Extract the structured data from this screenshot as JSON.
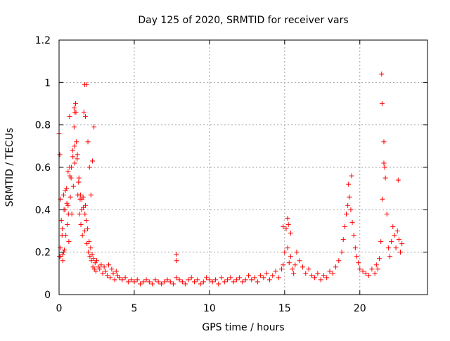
{
  "chart_data": {
    "type": "scatter",
    "title": "Day 125 of 2020, SRMTID for receiver vars",
    "xlabel": "GPS time / hours",
    "ylabel": "SRMTID / TECUs",
    "xlim": [
      0,
      24.5
    ],
    "ylim": [
      0,
      1.2
    ],
    "x_ticks": [
      0,
      5,
      10,
      15,
      20
    ],
    "x_tick_labels": [
      "0",
      "5",
      "10",
      "15",
      "20"
    ],
    "y_ticks": [
      0,
      0.2,
      0.4,
      0.6,
      0.8,
      1.0,
      1.2
    ],
    "y_tick_labels": [
      "0",
      "0.2",
      "0.4",
      "0.6",
      "0.8",
      "1",
      "1.2"
    ],
    "grid": true,
    "marker": "+",
    "series": [
      {
        "name": "SRMTID",
        "color": "#ff0000",
        "x": [
          0.0,
          0.05,
          0.1,
          0.15,
          0.2,
          0.25,
          0.3,
          0.35,
          0.4,
          0.45,
          0.5,
          0.55,
          0.6,
          0.65,
          0.7,
          0.75,
          0.8,
          0.85,
          0.9,
          0.95,
          1.0,
          1.05,
          1.1,
          1.15,
          1.2,
          1.25,
          1.3,
          1.35,
          1.4,
          1.45,
          1.5,
          1.55,
          1.6,
          1.65,
          1.7,
          1.75,
          1.8,
          1.85,
          1.9,
          1.95,
          2.0,
          2.05,
          2.1,
          2.15,
          2.2,
          2.25,
          2.3,
          2.35,
          2.4,
          2.45,
          2.5,
          2.6,
          2.7,
          2.8,
          2.9,
          3.0,
          3.1,
          3.2,
          3.3,
          3.4,
          3.5,
          3.6,
          3.7,
          3.8,
          3.9,
          4.0,
          4.2,
          4.4,
          4.6,
          4.8,
          5.0,
          5.2,
          5.4,
          5.6,
          5.8,
          6.0,
          6.2,
          6.4,
          6.6,
          6.8,
          7.0,
          7.2,
          7.4,
          7.6,
          7.8,
          8.0,
          8.2,
          8.4,
          8.6,
          8.8,
          9.0,
          9.2,
          9.4,
          9.6,
          9.8,
          10.0,
          10.2,
          10.4,
          10.6,
          10.8,
          11.0,
          11.2,
          11.4,
          11.6,
          11.8,
          12.0,
          12.2,
          12.4,
          12.6,
          12.8,
          13.0,
          13.2,
          13.4,
          13.6,
          13.8,
          14.0,
          14.2,
          14.4,
          14.6,
          14.8,
          14.9,
          15.0,
          15.1,
          15.2,
          15.3,
          15.4,
          15.5,
          15.6,
          15.7,
          15.8,
          16.0,
          16.2,
          16.4,
          16.6,
          16.8,
          17.0,
          17.2,
          17.4,
          17.6,
          17.8,
          18.0,
          18.2,
          18.4,
          18.6,
          18.8,
          18.9,
          19.0,
          19.1,
          19.2,
          19.3,
          19.4,
          19.5,
          19.6,
          19.7,
          19.8,
          19.9,
          20.0,
          20.2,
          20.4,
          20.6,
          20.8,
          21.0,
          21.1,
          21.2,
          21.3,
          21.4,
          21.5,
          21.6,
          21.7,
          21.8,
          21.9,
          22.0,
          22.1,
          22.2,
          22.3,
          22.4,
          22.5,
          22.6,
          22.7,
          22.8,
          0.02,
          0.08,
          0.12,
          0.22,
          0.33,
          0.42,
          0.52,
          0.62,
          0.72,
          0.82,
          0.92,
          1.02,
          1.12,
          1.22,
          1.32,
          1.42,
          1.52,
          1.62,
          1.72,
          1.82,
          1.92,
          2.02,
          2.12,
          2.22,
          2.32,
          7.8,
          7.82,
          14.9,
          15.2,
          15.25,
          15.4,
          19.25,
          19.45,
          21.45,
          21.48,
          21.6,
          21.65,
          22.55,
          1.7,
          1.75,
          1.0,
          1.05,
          0.7,
          0.6,
          0.3,
          0.25
        ],
        "y": [
          0.76,
          0.66,
          0.45,
          0.35,
          0.28,
          0.19,
          0.47,
          0.21,
          0.4,
          0.28,
          0.5,
          0.33,
          0.42,
          0.25,
          0.84,
          0.46,
          0.55,
          0.38,
          0.68,
          0.51,
          0.79,
          0.62,
          0.9,
          0.72,
          0.64,
          0.47,
          0.53,
          0.38,
          0.45,
          0.33,
          0.4,
          0.28,
          0.46,
          0.86,
          0.3,
          0.42,
          0.35,
          0.24,
          0.31,
          0.2,
          0.25,
          0.18,
          0.22,
          0.16,
          0.19,
          0.13,
          0.17,
          0.12,
          0.15,
          0.11,
          0.16,
          0.13,
          0.12,
          0.14,
          0.1,
          0.13,
          0.11,
          0.09,
          0.14,
          0.08,
          0.12,
          0.1,
          0.07,
          0.11,
          0.09,
          0.08,
          0.07,
          0.08,
          0.06,
          0.07,
          0.06,
          0.07,
          0.05,
          0.06,
          0.07,
          0.06,
          0.05,
          0.07,
          0.06,
          0.05,
          0.06,
          0.07,
          0.06,
          0.05,
          0.08,
          0.07,
          0.06,
          0.05,
          0.07,
          0.08,
          0.06,
          0.07,
          0.05,
          0.06,
          0.08,
          0.07,
          0.06,
          0.07,
          0.05,
          0.08,
          0.06,
          0.07,
          0.08,
          0.06,
          0.07,
          0.08,
          0.06,
          0.07,
          0.09,
          0.07,
          0.08,
          0.06,
          0.09,
          0.08,
          0.1,
          0.07,
          0.09,
          0.11,
          0.08,
          0.12,
          0.14,
          0.2,
          0.31,
          0.22,
          0.15,
          0.18,
          0.12,
          0.1,
          0.14,
          0.2,
          0.16,
          0.13,
          0.1,
          0.12,
          0.09,
          0.08,
          0.1,
          0.07,
          0.09,
          0.08,
          0.11,
          0.1,
          0.13,
          0.16,
          0.2,
          0.26,
          0.32,
          0.38,
          0.42,
          0.46,
          0.4,
          0.34,
          0.28,
          0.22,
          0.18,
          0.15,
          0.12,
          0.11,
          0.1,
          0.09,
          0.12,
          0.1,
          0.14,
          0.12,
          0.17,
          0.25,
          0.45,
          0.62,
          0.55,
          0.38,
          0.22,
          0.18,
          0.25,
          0.32,
          0.28,
          0.22,
          0.3,
          0.26,
          0.2,
          0.24,
          0.18,
          0.22,
          0.18,
          0.31,
          0.4,
          0.49,
          0.43,
          0.38,
          0.56,
          0.6,
          0.65,
          0.7,
          0.86,
          0.66,
          0.55,
          0.47,
          0.45,
          0.41,
          0.38,
          0.99,
          0.72,
          0.6,
          0.47,
          0.63,
          0.79,
          0.19,
          0.16,
          0.32,
          0.36,
          0.33,
          0.29,
          0.52,
          0.56,
          1.04,
          0.9,
          0.72,
          0.6,
          0.54,
          0.99,
          0.84,
          0.88,
          0.86,
          0.6,
          0.58,
          0.2,
          0.16
        ]
      }
    ]
  }
}
